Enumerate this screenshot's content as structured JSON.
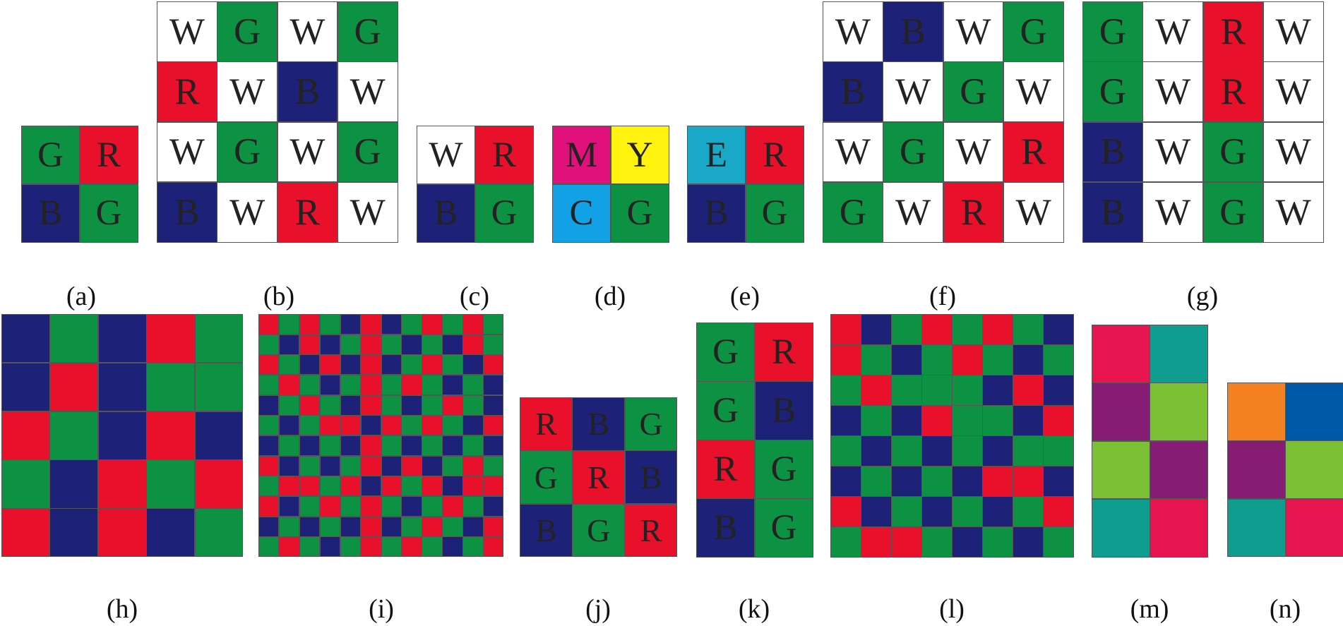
{
  "colors": {
    "R": "#e8102a",
    "G": "#0d9243",
    "B": "#1e2178",
    "W": "#ffffff",
    "M": "#e0117a",
    "Y": "#fff20e",
    "C": "#12a1e4",
    "E": "#1aa8c9",
    "pink": "#e6154f",
    "teal": "#0e9d8f",
    "purple": "#861c74",
    "lime": "#7bbf35",
    "orange": "#f58220",
    "azure": "#0058a8"
  },
  "patterns": [
    {
      "id": "a",
      "label": "(a)",
      "grid": [
        [
          "G",
          "R"
        ],
        [
          "B",
          "G"
        ]
      ],
      "show_letters": true
    },
    {
      "id": "b",
      "label": "(b)",
      "grid": [
        [
          "W",
          "G",
          "W",
          "G"
        ],
        [
          "R",
          "W",
          "B",
          "W"
        ],
        [
          "W",
          "G",
          "W",
          "G"
        ],
        [
          "B",
          "W",
          "R",
          "W"
        ]
      ],
      "show_letters": true
    },
    {
      "id": "c",
      "label": "(c)",
      "grid": [
        [
          "W",
          "R"
        ],
        [
          "B",
          "G"
        ]
      ],
      "show_letters": true
    },
    {
      "id": "d",
      "label": "(d)",
      "grid": [
        [
          "M",
          "Y"
        ],
        [
          "C",
          "G"
        ]
      ],
      "show_letters": true
    },
    {
      "id": "e",
      "label": "(e)",
      "grid": [
        [
          "E",
          "R"
        ],
        [
          "B",
          "G"
        ]
      ],
      "show_letters": true
    },
    {
      "id": "f",
      "label": "(f)",
      "grid": [
        [
          "W",
          "B",
          "W",
          "G"
        ],
        [
          "B",
          "W",
          "G",
          "W"
        ],
        [
          "W",
          "G",
          "W",
          "R"
        ],
        [
          "G",
          "W",
          "R",
          "W"
        ]
      ],
      "show_letters": true
    },
    {
      "id": "g",
      "label": "(g)",
      "grid": [
        [
          "G",
          "W",
          "R",
          "W"
        ],
        [
          "G",
          "W",
          "R",
          "W"
        ],
        [
          "B",
          "W",
          "G",
          "W"
        ],
        [
          "B",
          "W",
          "G",
          "W"
        ]
      ],
      "show_letters": true
    },
    {
      "id": "h",
      "label": "(h)",
      "grid": [
        [
          "B",
          "G",
          "B",
          "R",
          "G"
        ],
        [
          "B",
          "R",
          "B",
          "G",
          "G"
        ],
        [
          "R",
          "G",
          "B",
          "R",
          "B"
        ],
        [
          "G",
          "B",
          "R",
          "G",
          "R"
        ],
        [
          "R",
          "B",
          "R",
          "B",
          "G"
        ]
      ],
      "show_letters": false
    },
    {
      "id": "i",
      "label": "(i)",
      "grid": [
        [
          "R",
          "G",
          "R",
          "G",
          "B",
          "R",
          "B",
          "G",
          "R",
          "G",
          "R",
          "G"
        ],
        [
          "G",
          "B",
          "R",
          "B",
          "G",
          "R",
          "G",
          "B",
          "G",
          "B",
          "R",
          "G"
        ],
        [
          "R",
          "G",
          "B",
          "R",
          "B",
          "R",
          "B",
          "G",
          "R",
          "G",
          "B",
          "R"
        ],
        [
          "G",
          "R",
          "G",
          "B",
          "G",
          "R",
          "G",
          "R",
          "G",
          "B",
          "G",
          "B"
        ],
        [
          "B",
          "G",
          "R",
          "G",
          "B",
          "R",
          "G",
          "B",
          "G",
          "R",
          "G",
          "B"
        ],
        [
          "G",
          "B",
          "G",
          "R",
          "R",
          "B",
          "R",
          "G",
          "R",
          "G",
          "B",
          "R"
        ],
        [
          "B",
          "G",
          "B",
          "G",
          "B",
          "R",
          "G",
          "B",
          "G",
          "B",
          "G",
          "B"
        ],
        [
          "R",
          "B",
          "G",
          "B",
          "G",
          "R",
          "B",
          "R",
          "B",
          "G",
          "R",
          "G"
        ],
        [
          "G",
          "R",
          "R",
          "G",
          "R",
          "B",
          "R",
          "G",
          "R",
          "B",
          "R",
          "R"
        ],
        [
          "R",
          "B",
          "G",
          "R",
          "G",
          "R",
          "G",
          "B",
          "G",
          "R",
          "G",
          "B"
        ],
        [
          "B",
          "G",
          "B",
          "G",
          "B",
          "R",
          "B",
          "G",
          "R",
          "G",
          "B",
          "R"
        ],
        [
          "G",
          "R",
          "G",
          "B",
          "G",
          "R",
          "G",
          "R",
          "G",
          "B",
          "G",
          "R"
        ]
      ],
      "show_letters": false
    },
    {
      "id": "j",
      "label": "(j)",
      "grid": [
        [
          "R",
          "B",
          "G"
        ],
        [
          "G",
          "R",
          "B"
        ],
        [
          "B",
          "G",
          "R"
        ]
      ],
      "show_letters": true
    },
    {
      "id": "k",
      "label": "(k)",
      "grid": [
        [
          "G",
          "R"
        ],
        [
          "G",
          "B"
        ],
        [
          "R",
          "G"
        ],
        [
          "B",
          "G"
        ]
      ],
      "show_letters": true
    },
    {
      "id": "l",
      "label": "(l)",
      "grid": [
        [
          "R",
          "B",
          "G",
          "R",
          "G",
          "R",
          "G",
          "B"
        ],
        [
          "R",
          "G",
          "B",
          "G",
          "R",
          "G",
          "B",
          "G"
        ],
        [
          "G",
          "R",
          "G",
          "G",
          "G",
          "B",
          "R",
          "B"
        ],
        [
          "B",
          "G",
          "B",
          "R",
          "G",
          "G",
          "B",
          "R"
        ],
        [
          "G",
          "B",
          "G",
          "B",
          "G",
          "B",
          "G",
          "G"
        ],
        [
          "B",
          "G",
          "B",
          "G",
          "B",
          "R",
          "R",
          "B"
        ],
        [
          "R",
          "B",
          "G",
          "B",
          "G",
          "B",
          "G",
          "R"
        ],
        [
          "G",
          "R",
          "R",
          "G",
          "B",
          "G",
          "B",
          "G"
        ]
      ],
      "show_letters": false
    },
    {
      "id": "m",
      "label": "(m)",
      "grid": [
        [
          "pink",
          "teal"
        ],
        [
          "purple",
          "lime"
        ],
        [
          "lime",
          "purple"
        ],
        [
          "teal",
          "pink"
        ]
      ],
      "show_letters": false
    },
    {
      "id": "n",
      "label": "(n)",
      "grid": [
        [
          "orange",
          "azure"
        ],
        [
          "purple",
          "lime"
        ],
        [
          "teal",
          "pink"
        ]
      ],
      "show_letters": false
    }
  ]
}
